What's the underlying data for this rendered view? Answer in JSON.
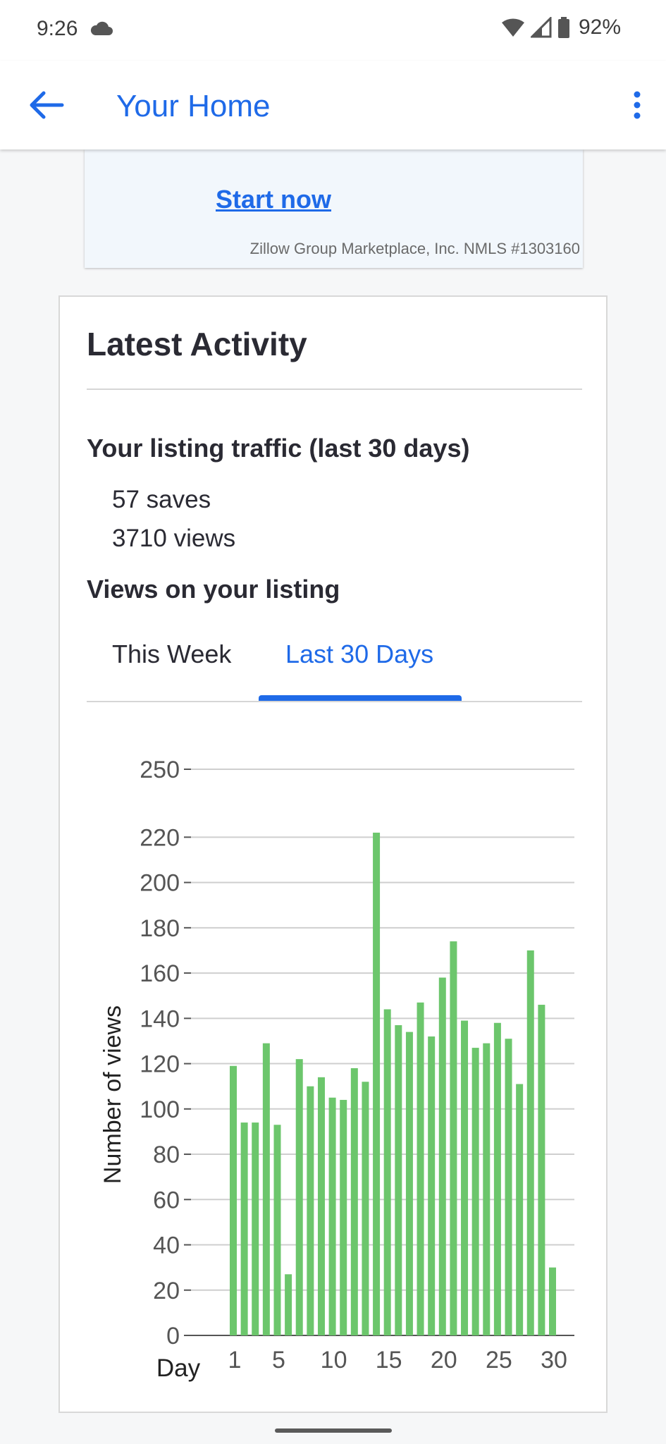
{
  "status_bar": {
    "time": "9:26",
    "battery": "92%",
    "icons": [
      "cloud-icon",
      "wifi-icon",
      "signal-icon",
      "battery-icon"
    ]
  },
  "app_bar": {
    "title": "Your Home",
    "icons": [
      "back-arrow-icon",
      "more-vert-icon"
    ]
  },
  "promo": {
    "link_label": "Start now",
    "disclaimer": "Zillow Group Marketplace, Inc. NMLS #1303160"
  },
  "activity": {
    "title": "Latest Activity",
    "traffic_heading": "Your listing traffic (last 30 days)",
    "saves": "57 saves",
    "views": "3710 views",
    "views_heading": "Views on your listing",
    "tabs": [
      {
        "label": "This Week",
        "selected": false
      },
      {
        "label": "Last 30 Days",
        "selected": true
      }
    ]
  },
  "colors": {
    "accent": "#1f6ae8",
    "bar": "#6cc66c"
  },
  "chart_data": {
    "type": "bar",
    "xlabel": "Day",
    "ylabel": "Number of views",
    "x_ticks": [
      "1",
      "5",
      "10",
      "15",
      "20",
      "25",
      "30"
    ],
    "y_ticks": [
      "0",
      "20",
      "40",
      "60",
      "80",
      "100",
      "120",
      "140",
      "160",
      "180",
      "200",
      "220",
      "250"
    ],
    "ylim": [
      0,
      250
    ],
    "grid": true,
    "categories": [
      1,
      2,
      3,
      4,
      5,
      6,
      7,
      8,
      9,
      10,
      11,
      12,
      13,
      14,
      15,
      16,
      17,
      18,
      19,
      20,
      21,
      22,
      23,
      24,
      25,
      26,
      27,
      28,
      29,
      30
    ],
    "values": [
      119,
      94,
      94,
      129,
      93,
      27,
      122,
      110,
      114,
      105,
      104,
      118,
      112,
      222,
      144,
      137,
      134,
      147,
      132,
      158,
      174,
      139,
      127,
      129,
      138,
      131,
      111,
      170,
      146,
      30
    ]
  }
}
